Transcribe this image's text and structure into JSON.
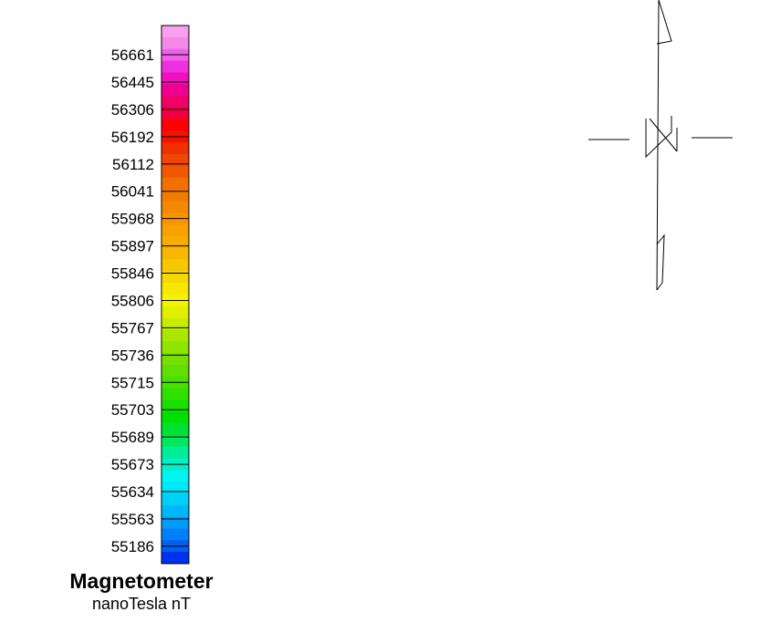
{
  "chart_data": {
    "type": "heatmap",
    "title": "Magnetometer",
    "subtitle": "nanoTesla nT",
    "colorbar_ticks": [
      56661,
      56445,
      56306,
      56192,
      56112,
      56041,
      55968,
      55897,
      55846,
      55806,
      55767,
      55736,
      55715,
      55703,
      55689,
      55673,
      55634,
      55563,
      55186
    ],
    "colorbar_colors": [
      "#f8a0f0",
      "#f48ae8",
      "#f060e8",
      "#ee30e0",
      "#f010c0",
      "#f00090",
      "#f00068",
      "#f00040",
      "#ff0000",
      "#f51000",
      "#f03000",
      "#f04800",
      "#f05800",
      "#f07000",
      "#f27c00",
      "#f48800",
      "#f89400",
      "#f8a000",
      "#f8ac00",
      "#f8b800",
      "#f6c800",
      "#f4d800",
      "#f8e800",
      "#f4f400",
      "#e0f000",
      "#c8ec00",
      "#a8e800",
      "#90e400",
      "#78e000",
      "#60e000",
      "#48e000",
      "#30e000",
      "#18e000",
      "#00e000",
      "#00e030",
      "#00e860",
      "#00ec98",
      "#00f0c8",
      "#00f4f0",
      "#00e8f8",
      "#00d0f8",
      "#00b8f8",
      "#009cf8",
      "#0080f8",
      "#0060f0",
      "#0030f0"
    ]
  }
}
